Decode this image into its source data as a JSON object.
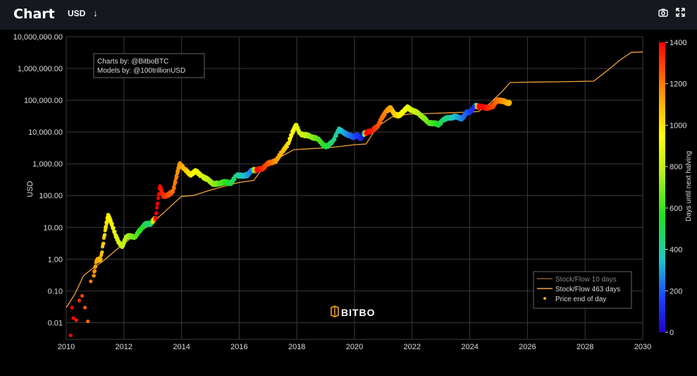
{
  "header": {
    "title": "Chart",
    "currency": "USD",
    "currency_arrow": "↓",
    "camera_icon": "camera-icon",
    "expand_icon": "expand-icon"
  },
  "annotation": [
    "Charts by: @BitboBTC",
    "Models by: @100trillionUSD"
  ],
  "watermark": "BITBO",
  "colors": {
    "background": "#000000",
    "topbar": "#15181f",
    "grid": "#3a3a3a",
    "model_line": "#f0a33a",
    "model_line_10d": "#8a5a2a"
  },
  "chart_data": {
    "type": "scatter",
    "ylabel": "USD",
    "y_scale": "log",
    "ylim": [
      0.003,
      10000000
    ],
    "xlim": [
      2010,
      2030
    ],
    "y_ticks": [
      {
        "v": 10000000,
        "label": "10,000,000.00"
      },
      {
        "v": 1000000,
        "label": "1,000,000.00"
      },
      {
        "v": 100000,
        "label": "100,000.00"
      },
      {
        "v": 10000,
        "label": "10,000.00"
      },
      {
        "v": 1000,
        "label": "1,000.00"
      },
      {
        "v": 100,
        "label": "100.00"
      },
      {
        "v": 10,
        "label": "10.00"
      },
      {
        "v": 1,
        "label": "1.00"
      },
      {
        "v": 0.1,
        "label": "0.10"
      },
      {
        "v": 0.01,
        "label": "0.01"
      }
    ],
    "x_ticks": [
      "2010",
      "2012",
      "2014",
      "2016",
      "2018",
      "2020",
      "2022",
      "2024",
      "2026",
      "2028",
      "2030"
    ],
    "colorbar": {
      "label": "Days until next halving",
      "range": [
        0,
        1400
      ],
      "ticks": [
        "0",
        "200",
        "400",
        "600",
        "800",
        "1000",
        "1200",
        "1400"
      ]
    },
    "legend": {
      "position": "bottom-right",
      "entries": [
        "Stock/Flow 10 days",
        "Stock/Flow 463 days",
        "Price end of day"
      ]
    },
    "series": [
      {
        "name": "Stock/Flow 463 days",
        "points": [
          [
            2010.0,
            0.03
          ],
          [
            2010.3,
            0.08
          ],
          [
            2010.6,
            0.3
          ],
          [
            2010.9,
            0.5
          ],
          [
            2011.3,
            0.9
          ],
          [
            2011.8,
            2.2
          ],
          [
            2012.3,
            5
          ],
          [
            2012.9,
            12
          ],
          [
            2013.4,
            30
          ],
          [
            2013.8,
            65
          ],
          [
            2014.0,
            95
          ],
          [
            2014.4,
            100
          ],
          [
            2014.9,
            140
          ],
          [
            2015.5,
            200
          ],
          [
            2016.0,
            260
          ],
          [
            2016.5,
            300
          ],
          [
            2016.9,
            900
          ],
          [
            2017.4,
            1600
          ],
          [
            2017.9,
            2800
          ],
          [
            2018.5,
            3000
          ],
          [
            2019.1,
            3200
          ],
          [
            2019.6,
            3600
          ],
          [
            2020.0,
            4000
          ],
          [
            2020.4,
            4200
          ],
          [
            2020.8,
            15000
          ],
          [
            2021.3,
            30000
          ],
          [
            2021.9,
            37000
          ],
          [
            2022.5,
            38000
          ],
          [
            2023.2,
            40000
          ],
          [
            2023.8,
            42000
          ],
          [
            2024.3,
            44000
          ],
          [
            2024.7,
            80000
          ],
          [
            2025.1,
            180000
          ],
          [
            2025.4,
            360000
          ],
          [
            2026.0,
            370000
          ],
          [
            2027.0,
            380000
          ],
          [
            2028.3,
            400000
          ],
          [
            2028.8,
            900000
          ],
          [
            2029.2,
            1800000
          ],
          [
            2029.6,
            3200000
          ],
          [
            2030.0,
            3300000
          ]
        ]
      },
      {
        "name": "Price end of day",
        "color_by": "days_until_next_halving",
        "points": [
          [
            2010.15,
            0.004,
            1420
          ],
          [
            2010.2,
            0.03,
            1400
          ],
          [
            2010.25,
            0.014,
            1390
          ],
          [
            2010.35,
            0.012,
            1350
          ],
          [
            2010.45,
            0.05,
            1320
          ],
          [
            2010.55,
            0.07,
            1290
          ],
          [
            2010.65,
            0.03,
            1260
          ],
          [
            2010.75,
            0.011,
            1230
          ],
          [
            2010.85,
            0.2,
            1200
          ],
          [
            2010.95,
            0.3,
            1170
          ],
          [
            2011.05,
            0.9,
            1130
          ],
          [
            2011.2,
            1.0,
            1080
          ],
          [
            2011.35,
            8,
            1020
          ],
          [
            2011.45,
            25,
            990
          ],
          [
            2011.55,
            15,
            950
          ],
          [
            2011.7,
            6,
            900
          ],
          [
            2011.85,
            3,
            840
          ],
          [
            2011.95,
            2.5,
            800
          ],
          [
            2012.05,
            4.5,
            780
          ],
          [
            2012.2,
            5.5,
            720
          ],
          [
            2012.4,
            5,
            650
          ],
          [
            2012.55,
            8,
            590
          ],
          [
            2012.7,
            12,
            520
          ],
          [
            2012.85,
            13,
            470
          ],
          [
            2012.95,
            13.5,
            450
          ],
          [
            2013.1,
            20,
            1420
          ],
          [
            2013.25,
            200,
            1380
          ],
          [
            2013.35,
            100,
            1340
          ],
          [
            2013.5,
            100,
            1290
          ],
          [
            2013.7,
            130,
            1220
          ],
          [
            2013.85,
            500,
            1170
          ],
          [
            2013.93,
            1000,
            1140
          ],
          [
            2014.1,
            700,
            1080
          ],
          [
            2014.3,
            450,
            1000
          ],
          [
            2014.5,
            600,
            930
          ],
          [
            2014.7,
            400,
            860
          ],
          [
            2014.9,
            330,
            790
          ],
          [
            2015.1,
            230,
            720
          ],
          [
            2015.3,
            240,
            650
          ],
          [
            2015.5,
            270,
            580
          ],
          [
            2015.7,
            240,
            510
          ],
          [
            2015.9,
            430,
            440
          ],
          [
            2016.1,
            420,
            360
          ],
          [
            2016.3,
            450,
            300
          ],
          [
            2016.45,
            650,
            230
          ],
          [
            2016.6,
            640,
            1400
          ],
          [
            2016.8,
            700,
            1330
          ],
          [
            2016.95,
            950,
            1280
          ],
          [
            2017.1,
            1100,
            1220
          ],
          [
            2017.3,
            1300,
            1150
          ],
          [
            2017.5,
            2500,
            1080
          ],
          [
            2017.7,
            4300,
            1010
          ],
          [
            2017.85,
            10000,
            940
          ],
          [
            2017.97,
            17000,
            900
          ],
          [
            2018.1,
            9000,
            860
          ],
          [
            2018.3,
            8000,
            790
          ],
          [
            2018.5,
            7000,
            720
          ],
          [
            2018.7,
            6500,
            650
          ],
          [
            2018.9,
            4000,
            580
          ],
          [
            2019.05,
            3500,
            520
          ],
          [
            2019.25,
            5000,
            450
          ],
          [
            2019.45,
            12000,
            380
          ],
          [
            2019.6,
            10000,
            320
          ],
          [
            2019.8,
            8000,
            250
          ],
          [
            2019.95,
            7000,
            200
          ],
          [
            2020.1,
            8000,
            150
          ],
          [
            2020.2,
            6000,
            110
          ],
          [
            2020.3,
            8500,
            50
          ],
          [
            2020.4,
            9500,
            1420
          ],
          [
            2020.6,
            11000,
            1350
          ],
          [
            2020.8,
            15000,
            1280
          ],
          [
            2020.95,
            28000,
            1220
          ],
          [
            2021.1,
            45000,
            1170
          ],
          [
            2021.25,
            58000,
            1110
          ],
          [
            2021.4,
            35000,
            1050
          ],
          [
            2021.55,
            33000,
            1000
          ],
          [
            2021.7,
            45000,
            950
          ],
          [
            2021.85,
            60000,
            900
          ],
          [
            2022.0,
            47000,
            850
          ],
          [
            2022.2,
            40000,
            780
          ],
          [
            2022.4,
            28000,
            720
          ],
          [
            2022.55,
            20000,
            660
          ],
          [
            2022.75,
            19000,
            600
          ],
          [
            2022.9,
            17000,
            540
          ],
          [
            2023.05,
            23000,
            480
          ],
          [
            2023.25,
            28000,
            420
          ],
          [
            2023.45,
            30000,
            350
          ],
          [
            2023.6,
            29000,
            300
          ],
          [
            2023.75,
            27000,
            250
          ],
          [
            2023.9,
            42000,
            200
          ],
          [
            2024.05,
            45000,
            140
          ],
          [
            2024.2,
            70000,
            80
          ],
          [
            2024.3,
            63000,
            1430
          ],
          [
            2024.5,
            60000,
            1380
          ],
          [
            2024.65,
            58000,
            1330
          ],
          [
            2024.8,
            65000,
            1280
          ],
          [
            2024.9,
            90000,
            1240
          ],
          [
            2025.0,
            100000,
            1200
          ],
          [
            2025.15,
            95000,
            1160
          ],
          [
            2025.3,
            82000,
            1110
          ],
          [
            2025.4,
            85000,
            1080
          ]
        ]
      }
    ]
  }
}
